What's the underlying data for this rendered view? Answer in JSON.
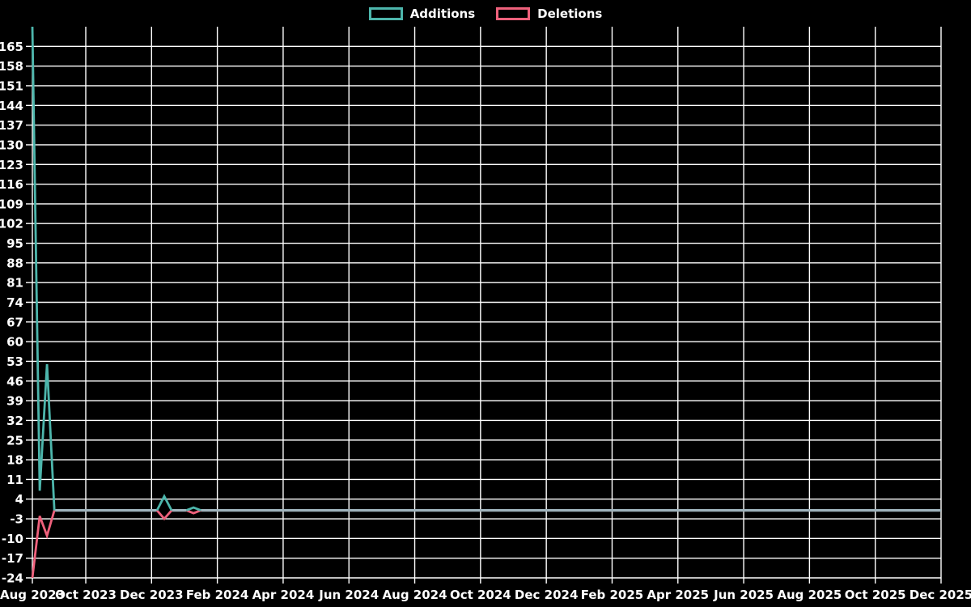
{
  "legend": {
    "items": [
      {
        "label": "Additions",
        "color": "#4db6ac"
      },
      {
        "label": "Deletions",
        "color": "#ef617c"
      }
    ]
  },
  "chart_data": {
    "type": "line",
    "title": "",
    "xlabel": "",
    "ylabel": "",
    "x_ticks": [
      "Aug 2023",
      "Oct 2023",
      "Dec 2023",
      "Feb 2024",
      "Apr 2024",
      "Jun 2024",
      "Aug 2024",
      "Oct 2024",
      "Dec 2024",
      "Feb 2025",
      "Apr 2025",
      "Jun 2025",
      "Aug 2025",
      "Oct 2025",
      "Dec 2025"
    ],
    "y_ticks": [
      165,
      158,
      151,
      144,
      137,
      130,
      123,
      116,
      109,
      102,
      95,
      88,
      81,
      74,
      67,
      60,
      53,
      46,
      39,
      32,
      25,
      18,
      11,
      4,
      -3,
      -10,
      -17,
      -24
    ],
    "ylim": [
      -24,
      172
    ],
    "grid": true,
    "legend_position": "top-center",
    "n_points": 125,
    "series": [
      {
        "name": "Additions",
        "color": "#4db6ac",
        "baseline_value": 0,
        "nonzero": {
          "0": 172,
          "1": 7,
          "2": 52,
          "18": 5,
          "22": 1
        }
      },
      {
        "name": "Deletions",
        "color": "#ef617c",
        "baseline_value": 0,
        "nonzero": {
          "0": -24,
          "1": -2,
          "2": -9,
          "18": -3,
          "22": -1
        }
      }
    ],
    "overlap_line_color": "#9fb3bc",
    "grid_color": "#ffffff",
    "background_color": "#000000"
  }
}
